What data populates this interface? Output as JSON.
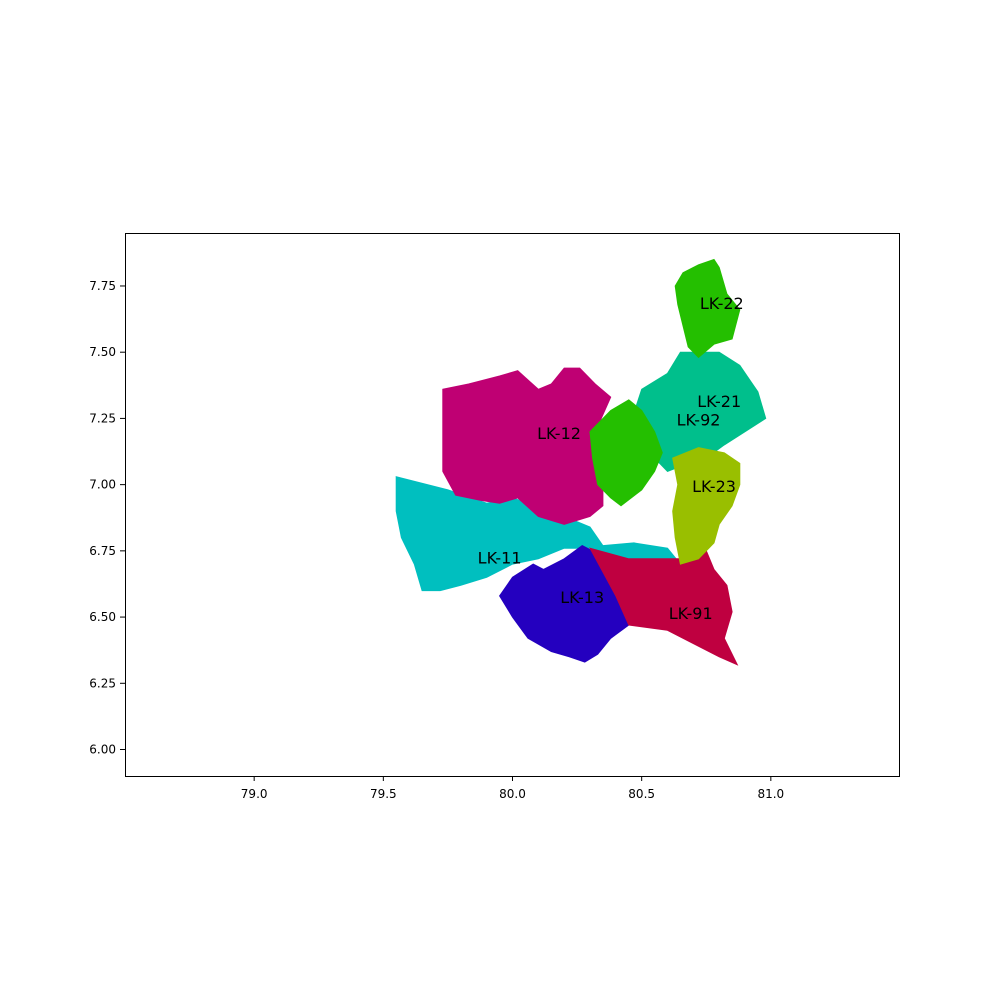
{
  "chart_data": {
    "type": "map",
    "title": "",
    "xlabel": "",
    "ylabel": "",
    "xlim": [
      78.5,
      81.5
    ],
    "ylim": [
      5.9,
      7.95
    ],
    "x_ticks": [
      "79.0",
      "79.5",
      "80.0",
      "80.5",
      "81.0"
    ],
    "x_tick_values": [
      79.0,
      79.5,
      80.0,
      80.5,
      81.0
    ],
    "y_ticks": [
      "6.00",
      "6.25",
      "6.50",
      "6.75",
      "7.00",
      "7.25",
      "7.50",
      "7.75"
    ],
    "y_tick_values": [
      6.0,
      6.25,
      6.5,
      6.75,
      7.0,
      7.25,
      7.5,
      7.75
    ],
    "grid": false,
    "regions": [
      {
        "label": "LK-11",
        "color": "#00bfbf",
        "label_pos": [
          79.95,
          6.72
        ],
        "polygon": [
          [
            79.55,
            7.03
          ],
          [
            79.75,
            6.98
          ],
          [
            79.9,
            6.93
          ],
          [
            80.0,
            6.95
          ],
          [
            80.15,
            6.9
          ],
          [
            80.3,
            6.84
          ],
          [
            80.35,
            6.77
          ],
          [
            80.47,
            6.78
          ],
          [
            80.6,
            6.76
          ],
          [
            80.65,
            6.7
          ],
          [
            80.67,
            6.68
          ],
          [
            80.6,
            6.72
          ],
          [
            80.5,
            6.72
          ],
          [
            80.4,
            6.7
          ],
          [
            80.3,
            6.76
          ],
          [
            80.2,
            6.76
          ],
          [
            80.1,
            6.72
          ],
          [
            80.0,
            6.7
          ],
          [
            79.9,
            6.65
          ],
          [
            79.8,
            6.62
          ],
          [
            79.72,
            6.6
          ],
          [
            79.65,
            6.6
          ],
          [
            79.62,
            6.7
          ],
          [
            79.57,
            6.8
          ],
          [
            79.55,
            6.9
          ]
        ]
      },
      {
        "label": "LK-12",
        "color": "#bf0073",
        "label_pos": [
          80.18,
          7.19
        ],
        "polygon": [
          [
            79.73,
            7.36
          ],
          [
            79.83,
            7.38
          ],
          [
            79.95,
            7.41
          ],
          [
            80.02,
            7.43
          ],
          [
            80.1,
            7.36
          ],
          [
            80.15,
            7.38
          ],
          [
            80.2,
            7.44
          ],
          [
            80.26,
            7.44
          ],
          [
            80.32,
            7.38
          ],
          [
            80.38,
            7.33
          ],
          [
            80.33,
            7.22
          ],
          [
            80.38,
            7.1
          ],
          [
            80.35,
            7.02
          ],
          [
            80.35,
            6.92
          ],
          [
            80.3,
            6.88
          ],
          [
            80.2,
            6.85
          ],
          [
            80.1,
            6.88
          ],
          [
            80.02,
            6.95
          ],
          [
            79.95,
            6.93
          ],
          [
            79.88,
            6.94
          ],
          [
            79.78,
            6.96
          ],
          [
            79.73,
            7.05
          ]
        ]
      },
      {
        "label": "LK-13",
        "color": "#2400bf",
        "label_pos": [
          80.27,
          6.57
        ],
        "polygon": [
          [
            80.12,
            6.68
          ],
          [
            80.2,
            6.72
          ],
          [
            80.27,
            6.77
          ],
          [
            80.35,
            6.73
          ],
          [
            80.4,
            6.65
          ],
          [
            80.45,
            6.55
          ],
          [
            80.45,
            6.47
          ],
          [
            80.38,
            6.42
          ],
          [
            80.33,
            6.36
          ],
          [
            80.28,
            6.33
          ],
          [
            80.22,
            6.35
          ],
          [
            80.15,
            6.37
          ],
          [
            80.06,
            6.42
          ],
          [
            80.0,
            6.5
          ],
          [
            79.95,
            6.58
          ],
          [
            80.0,
            6.65
          ],
          [
            80.08,
            6.7
          ]
        ]
      },
      {
        "label": "LK-91",
        "color": "#bf0040",
        "label_pos": [
          80.69,
          6.51
        ],
        "polygon": [
          [
            80.3,
            6.76
          ],
          [
            80.45,
            6.72
          ],
          [
            80.6,
            6.72
          ],
          [
            80.7,
            6.72
          ],
          [
            80.75,
            6.75
          ],
          [
            80.78,
            6.68
          ],
          [
            80.83,
            6.62
          ],
          [
            80.85,
            6.52
          ],
          [
            80.82,
            6.42
          ],
          [
            80.87,
            6.32
          ],
          [
            80.8,
            6.35
          ],
          [
            80.7,
            6.4
          ],
          [
            80.6,
            6.45
          ],
          [
            80.45,
            6.47
          ],
          [
            80.4,
            6.58
          ]
        ]
      },
      {
        "label": "LK-21",
        "color": "#00bf8c",
        "label_pos": [
          80.8,
          7.31
        ],
        "polygon": [
          [
            80.5,
            7.36
          ],
          [
            80.6,
            7.42
          ],
          [
            80.65,
            7.5
          ],
          [
            80.72,
            7.5
          ],
          [
            80.8,
            7.5
          ],
          [
            80.88,
            7.45
          ],
          [
            80.95,
            7.35
          ],
          [
            80.98,
            7.25
          ],
          [
            80.9,
            7.2
          ],
          [
            80.82,
            7.15
          ],
          [
            80.75,
            7.1
          ],
          [
            80.68,
            7.08
          ],
          [
            80.6,
            7.05
          ],
          [
            80.55,
            7.1
          ],
          [
            80.5,
            7.2
          ],
          [
            80.48,
            7.3
          ]
        ]
      },
      {
        "label": "LK-22",
        "color": "#24bf00",
        "label_pos": [
          80.81,
          7.68
        ],
        "polygon": [
          [
            80.63,
            7.75
          ],
          [
            80.66,
            7.8
          ],
          [
            80.72,
            7.83
          ],
          [
            80.78,
            7.85
          ],
          [
            80.8,
            7.82
          ],
          [
            80.83,
            7.72
          ],
          [
            80.88,
            7.66
          ],
          [
            80.85,
            7.55
          ],
          [
            80.78,
            7.53
          ],
          [
            80.72,
            7.48
          ],
          [
            80.68,
            7.52
          ],
          [
            80.66,
            7.6
          ],
          [
            80.64,
            7.68
          ]
        ]
      },
      {
        "label": "LK-92",
        "color": "#24bf00",
        "label_pos": [
          80.72,
          7.24
        ],
        "polygon": [
          [
            80.3,
            7.2
          ],
          [
            80.38,
            7.28
          ],
          [
            80.45,
            7.32
          ],
          [
            80.5,
            7.28
          ],
          [
            80.55,
            7.2
          ],
          [
            80.58,
            7.12
          ],
          [
            80.55,
            7.05
          ],
          [
            80.5,
            6.98
          ],
          [
            80.42,
            6.92
          ],
          [
            80.38,
            6.95
          ],
          [
            80.33,
            7.0
          ],
          [
            80.31,
            7.1
          ]
        ]
      },
      {
        "label": "LK-23",
        "color": "#99bf00",
        "label_pos": [
          80.78,
          6.99
        ],
        "polygon": [
          [
            80.62,
            7.1
          ],
          [
            80.72,
            7.14
          ],
          [
            80.82,
            7.12
          ],
          [
            80.88,
            7.08
          ],
          [
            80.88,
            7.0
          ],
          [
            80.85,
            6.92
          ],
          [
            80.8,
            6.85
          ],
          [
            80.78,
            6.78
          ],
          [
            80.72,
            6.72
          ],
          [
            80.65,
            6.7
          ],
          [
            80.63,
            6.8
          ],
          [
            80.62,
            6.9
          ],
          [
            80.64,
            7.0
          ]
        ]
      }
    ]
  }
}
